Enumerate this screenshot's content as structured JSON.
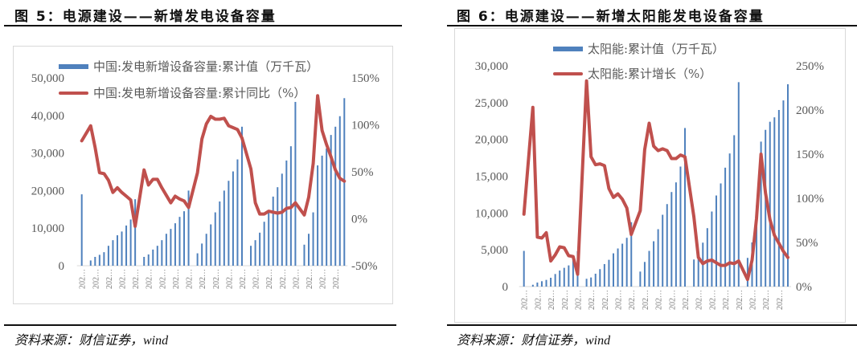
{
  "figure5": {
    "title": "图 5：电源建设——新增发电设备容量",
    "source": "资料来源：财信证券，wind"
  },
  "figure6": {
    "title": "图 6：电源建设——新增太阳能发电设备容量",
    "source": "资料来源：财信证券，wind"
  },
  "colors": {
    "bar": "#4F81BD",
    "line": "#C0504D"
  },
  "chart_data": [
    {
      "type": "bar+line",
      "title": "",
      "x_tick_label": "202…",
      "left_axis": {
        "ylim": [
          0,
          50000
        ],
        "ticks": [
          "0",
          "10,000",
          "20,000",
          "30,000",
          "40,000",
          "50,000"
        ]
      },
      "right_axis": {
        "ylim": [
          -50,
          150
        ],
        "ticks": [
          "-50%",
          "0%",
          "50%",
          "100%",
          "150%"
        ]
      },
      "legend_position": "top",
      "grid": false,
      "series": [
        {
          "name": "中国:发电新增设备容量:累计值（万千瓦）",
          "type": "bar",
          "axis": "left",
          "values": [
            19000,
            null,
            1400,
            2350,
            2900,
            3600,
            5300,
            6800,
            8100,
            9100,
            10700,
            12300,
            17700,
            null,
            2350,
            3000,
            4300,
            5300,
            6800,
            8500,
            9800,
            11300,
            13000,
            14500,
            20000,
            null,
            3300,
            5900,
            8500,
            11000,
            14200,
            17100,
            20000,
            22600,
            25100,
            28300,
            37000,
            null,
            5300,
            6800,
            8800,
            11700,
            14200,
            18400,
            20900,
            24500,
            28000,
            31800,
            43600,
            null,
            5600,
            8500,
            14200,
            26700,
            29300,
            31200,
            34800,
            37000,
            39800,
            44600
          ]
        },
        {
          "name": "中国:发电新增设备容量:累计同比（%）",
          "type": "line",
          "axis": "right",
          "values": [
            83,
            null,
            99,
            76,
            49,
            48,
            41,
            28,
            33,
            28,
            24,
            20,
            -8,
            null,
            52,
            36,
            42,
            42,
            33,
            25,
            17,
            24,
            21,
            19,
            12,
            null,
            49,
            85,
            101,
            109,
            106,
            106,
            107,
            99,
            97,
            95,
            86,
            null,
            53,
            17,
            5,
            5,
            8,
            7,
            6,
            7,
            11,
            12,
            17,
            null,
            4,
            23,
            59,
            131,
            94,
            79,
            66,
            52,
            43,
            40
          ]
        }
      ]
    },
    {
      "type": "bar+line",
      "title": "",
      "x_tick_label": "202…",
      "left_axis": {
        "ylim": [
          0,
          30000
        ],
        "ticks": [
          "0",
          "5,000",
          "10,000",
          "15,000",
          "20,000",
          "25,000",
          "30,000"
        ]
      },
      "right_axis": {
        "ylim": [
          0,
          250
        ],
        "ticks": [
          "0%",
          "50%",
          "100%",
          "150%",
          "200%",
          "250%"
        ]
      },
      "legend_position": "top",
      "grid": false,
      "series": [
        {
          "name": "太阳能:累计值（万千瓦）",
          "type": "bar",
          "axis": "left",
          "values": [
            4850,
            null,
            250,
            550,
            730,
            910,
            1200,
            1710,
            2180,
            2550,
            2880,
            3700,
            4800,
            null,
            1060,
            1240,
            1750,
            2370,
            3060,
            3640,
            4520,
            5180,
            5830,
            6630,
            8740,
            null,
            2040,
            3350,
            4850,
            6160,
            7800,
            9760,
            11210,
            12850,
            14160,
            16310,
            21550,
            null,
            3680,
            4300,
            5970,
            7940,
            10200,
            12380,
            14020,
            16160,
            18090,
            20570,
            27780,
            null,
            3900,
            6000,
            11000,
            19700,
            21300,
            22400,
            23000,
            24000,
            25300,
            27500
          ]
        },
        {
          "name": "太阳能:累计增长（%）",
          "type": "line",
          "axis": "right",
          "values": [
            82,
            null,
            203,
            56,
            55,
            61,
            29,
            36,
            45,
            44,
            35,
            34,
            14,
            null,
            233,
            147,
            138,
            139,
            137,
            111,
            101,
            105,
            99,
            89,
            59,
            null,
            86,
            155,
            185,
            159,
            154,
            156,
            154,
            145,
            145,
            149,
            147,
            null,
            79,
            33,
            26,
            29,
            30,
            27,
            24,
            24,
            27,
            26,
            29,
            null,
            8,
            30,
            77,
            150,
            106,
            76,
            58,
            49,
            40,
            33
          ]
        }
      ]
    }
  ]
}
